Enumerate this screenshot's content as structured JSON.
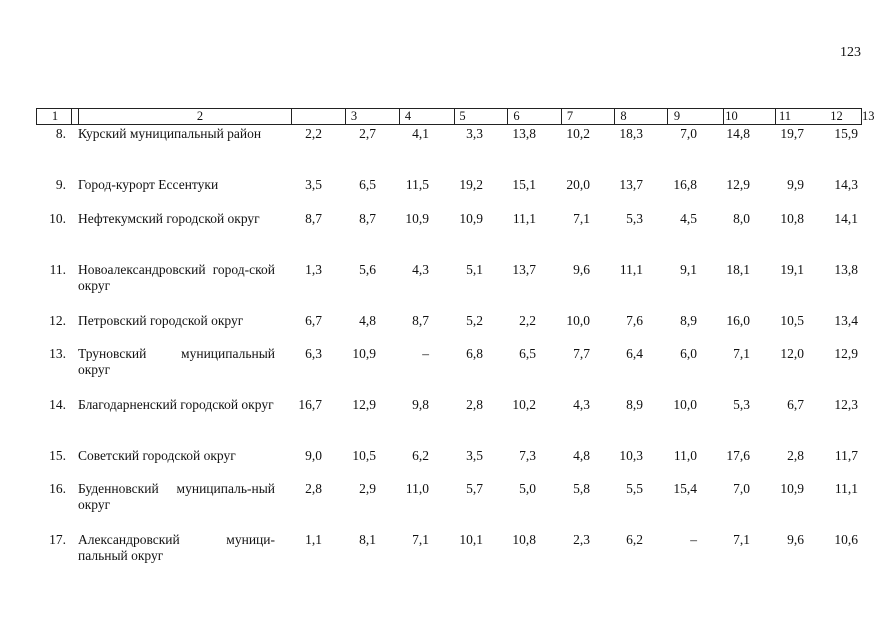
{
  "page_number": "123",
  "header": [
    "1",
    "2",
    "3",
    "4",
    "5",
    "6",
    "7",
    "8",
    "9",
    "10",
    "11",
    "12",
    "13"
  ],
  "rows": [
    {
      "num": "8.",
      "name": "Курский муниципальный район",
      "values": [
        "2,2",
        "2,7",
        "4,1",
        "3,3",
        "13,8",
        "10,2",
        "18,3",
        "7,0",
        "14,8",
        "19,7",
        "15,9"
      ]
    },
    {
      "num": "9.",
      "name": "Город-курорт Ессентуки",
      "values": [
        "3,5",
        "6,5",
        "11,5",
        "19,2",
        "15,1",
        "20,0",
        "13,7",
        "16,8",
        "12,9",
        "9,9",
        "14,3"
      ]
    },
    {
      "num": "10.",
      "name": "Нефтекумский городской округ",
      "values": [
        "8,7",
        "8,7",
        "10,9",
        "10,9",
        "11,1",
        "7,1",
        "5,3",
        "4,5",
        "8,0",
        "10,8",
        "14,1"
      ]
    },
    {
      "num": "11.",
      "name": "Новоалександровский город-ской округ",
      "values": [
        "1,3",
        "5,6",
        "4,3",
        "5,1",
        "13,7",
        "9,6",
        "11,1",
        "9,1",
        "18,1",
        "19,1",
        "13,8"
      ]
    },
    {
      "num": "12.",
      "name": "Петровский городской округ",
      "values": [
        "6,7",
        "4,8",
        "8,7",
        "5,2",
        "2,2",
        "10,0",
        "7,6",
        "8,9",
        "16,0",
        "10,5",
        "13,4"
      ]
    },
    {
      "num": "13.",
      "name": "Труновский муниципальный округ",
      "values": [
        "6,3",
        "10,9",
        "–",
        "6,8",
        "6,5",
        "7,7",
        "6,4",
        "6,0",
        "7,1",
        "12,0",
        "12,9"
      ]
    },
    {
      "num": "14.",
      "name": "Благодарненский городской округ",
      "values": [
        "16,7",
        "12,9",
        "9,8",
        "2,8",
        "10,2",
        "4,3",
        "8,9",
        "10,0",
        "5,3",
        "6,7",
        "12,3"
      ]
    },
    {
      "num": "15.",
      "name": "Советский городской округ",
      "values": [
        "9,0",
        "10,5",
        "6,2",
        "3,5",
        "7,3",
        "4,8",
        "10,3",
        "11,0",
        "17,6",
        "2,8",
        "11,7"
      ]
    },
    {
      "num": "16.",
      "name": "Буденновский муниципаль-ный округ",
      "values": [
        "2,8",
        "2,9",
        "11,0",
        "5,7",
        "5,0",
        "5,8",
        "5,5",
        "15,4",
        "7,0",
        "10,9",
        "11,1"
      ]
    },
    {
      "num": "17.",
      "name": "Александровский муници-пальный округ",
      "values": [
        "1,1",
        "8,1",
        "7,1",
        "10,1",
        "10,8",
        "2,3",
        "6,2",
        "–",
        "7,1",
        "9,6",
        "10,6"
      ]
    }
  ]
}
